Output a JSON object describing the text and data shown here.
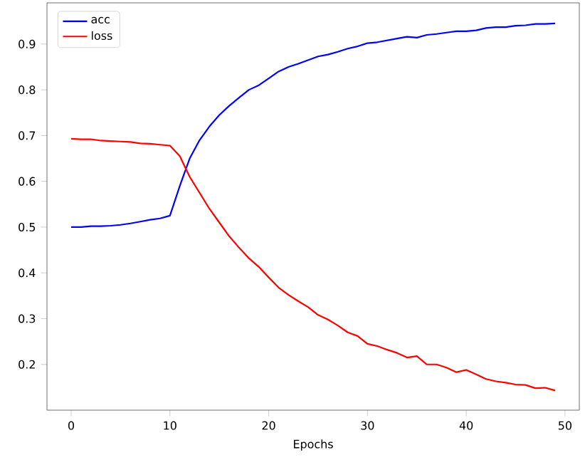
{
  "chart_data": {
    "type": "line",
    "xlabel": "Epochs",
    "x": [
      0,
      1,
      2,
      3,
      4,
      5,
      6,
      7,
      8,
      9,
      10,
      11,
      12,
      13,
      14,
      15,
      16,
      17,
      18,
      19,
      20,
      21,
      22,
      23,
      24,
      25,
      26,
      27,
      28,
      29,
      30,
      31,
      32,
      33,
      34,
      35,
      36,
      37,
      38,
      39,
      40,
      41,
      42,
      43,
      44,
      45,
      46,
      47,
      48,
      49
    ],
    "series": [
      {
        "name": "acc",
        "color": "#0000ff",
        "values": [
          0.5,
          0.5,
          0.502,
          0.502,
          0.503,
          0.505,
          0.508,
          0.512,
          0.516,
          0.519,
          0.525,
          0.59,
          0.65,
          0.69,
          0.72,
          0.745,
          0.765,
          0.783,
          0.8,
          0.81,
          0.825,
          0.84,
          0.85,
          0.857,
          0.865,
          0.873,
          0.877,
          0.883,
          0.89,
          0.895,
          0.902,
          0.904,
          0.908,
          0.912,
          0.916,
          0.914,
          0.92,
          0.922,
          0.925,
          0.928,
          0.928,
          0.93,
          0.935,
          0.937,
          0.937,
          0.94,
          0.941,
          0.944,
          0.944,
          0.945
        ]
      },
      {
        "name": "loss",
        "color": "#ff0000",
        "values": [
          0.693,
          0.692,
          0.692,
          0.689,
          0.688,
          0.687,
          0.686,
          0.683,
          0.682,
          0.68,
          0.678,
          0.655,
          0.61,
          0.575,
          0.54,
          0.51,
          0.48,
          0.455,
          0.432,
          0.413,
          0.39,
          0.368,
          0.352,
          0.338,
          0.325,
          0.308,
          0.298,
          0.285,
          0.27,
          0.262,
          0.245,
          0.24,
          0.232,
          0.225,
          0.215,
          0.218,
          0.2,
          0.2,
          0.193,
          0.183,
          0.188,
          0.178,
          0.168,
          0.163,
          0.16,
          0.156,
          0.155,
          0.148,
          0.149,
          0.143
        ]
      }
    ],
    "xlim": [
      -2.45,
      51.45
    ],
    "ylim": [
      0.1,
      0.99
    ],
    "xticks": [
      0,
      10,
      20,
      30,
      40,
      50
    ],
    "yticks": [
      0.2,
      0.3,
      0.4,
      0.5,
      0.6,
      0.7,
      0.8,
      0.9
    ],
    "legend": "top left",
    "grid": false,
    "marker": "none",
    "line_style": "solid"
  }
}
